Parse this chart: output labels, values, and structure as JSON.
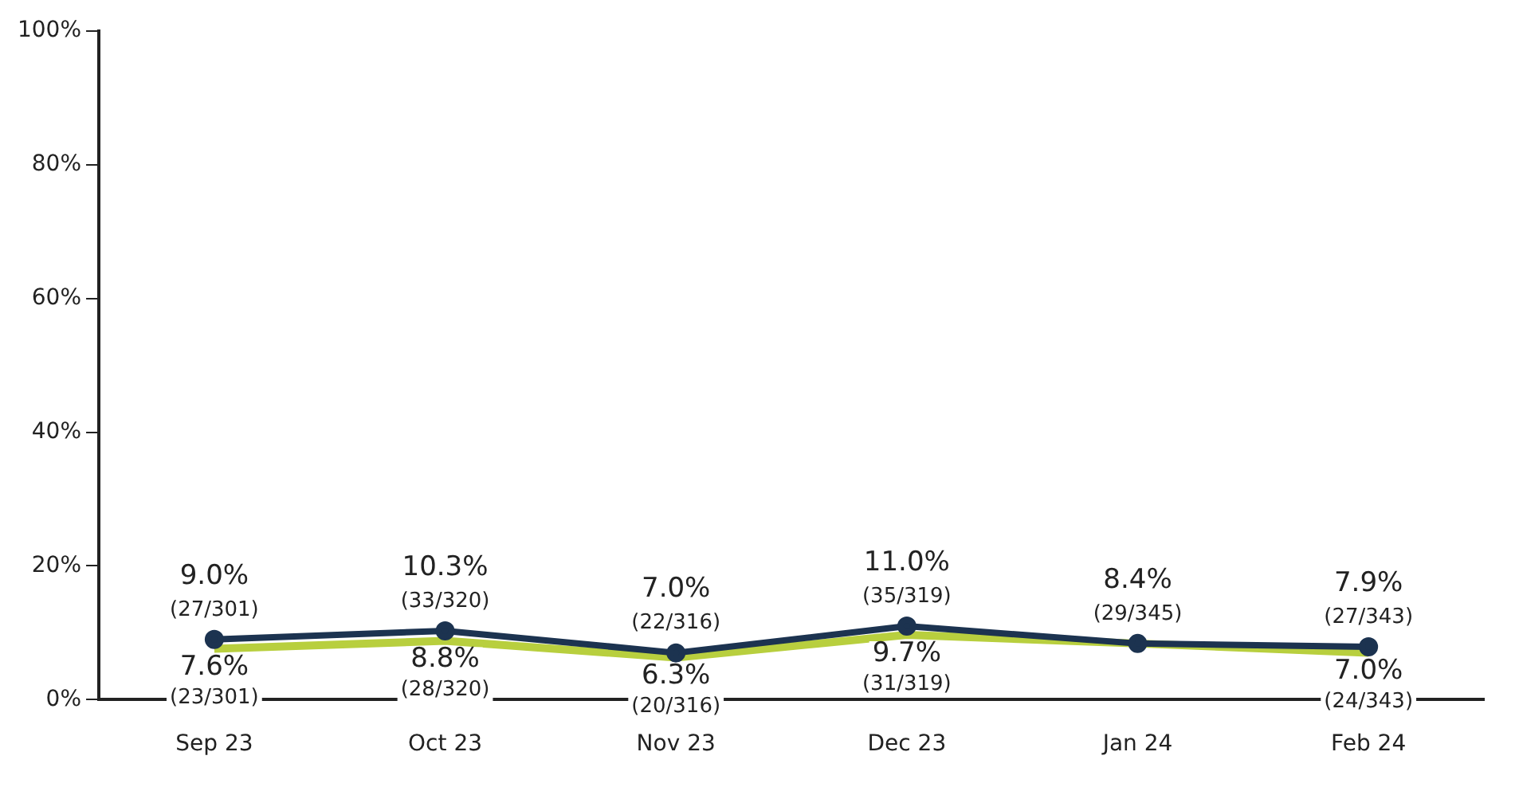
{
  "chart_data": {
    "type": "line",
    "categories": [
      "Sep 23",
      "Oct 23",
      "Nov 23",
      "Dec 23",
      "Jan 24",
      "Feb 24"
    ],
    "series": [
      {
        "color": "#1c3350",
        "values": [
          9.0,
          10.3,
          7.0,
          11.0,
          8.4,
          7.9
        ],
        "value_labels": [
          "9.0%\n(27/301)",
          "10.3%\n(33/320)",
          "7.0%\n(22/316)",
          "11.0%\n(35/319)",
          "8.4%\n(29/345)",
          "7.9%\n(27/343)"
        ]
      },
      {
        "color": "#b8cf3e",
        "marker": "none",
        "values": [
          7.6,
          8.8,
          6.3,
          9.7,
          8.4,
          7.0
        ],
        "value_labels": [
          "7.6%\n(23/301)",
          "8.8%\n(28/320)",
          "6.3%\n(20/316)",
          "9.7%\n(31/319)",
          null,
          "7.0%\n(24/343)"
        ]
      }
    ],
    "ylim": [
      0,
      100
    ],
    "yticks": [
      {
        "value": 0,
        "label": "0%"
      },
      {
        "value": 20,
        "label": "20%"
      },
      {
        "value": 40,
        "label": "40%"
      },
      {
        "value": 60,
        "label": "60%"
      },
      {
        "value": 80,
        "label": "80%"
      },
      {
        "value": 100,
        "label": "100%"
      }
    ],
    "grid": false,
    "legend": false,
    "marker": "circle",
    "line_style": "solid"
  }
}
